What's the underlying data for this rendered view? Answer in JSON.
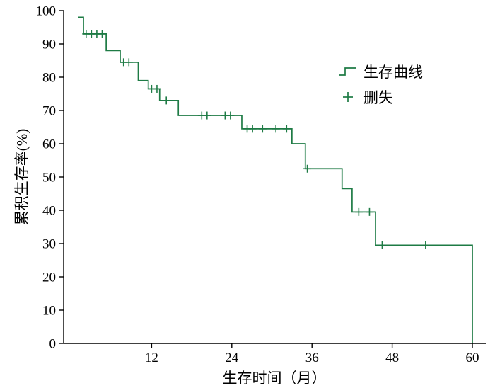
{
  "chart_data": {
    "type": "line",
    "subtype": "kaplan-meier-step-curve",
    "title": "",
    "xlabel": "生存时间（月）",
    "ylabel": "累积生存率(%)",
    "xlim": [
      0,
      62
    ],
    "ylim": [
      0,
      100
    ],
    "x_ticks": [
      12,
      24,
      36,
      48,
      60
    ],
    "y_ticks": [
      0,
      10,
      20,
      30,
      40,
      50,
      60,
      70,
      80,
      90,
      100
    ],
    "grid": false,
    "line_color": "#1e7b45",
    "axis_color": "#000000",
    "legend": {
      "position": "upper-right-inside",
      "items": [
        {
          "label": "生存曲线",
          "marker": "step-line"
        },
        {
          "label": "删失",
          "marker": "plus"
        }
      ]
    },
    "survival_steps": [
      [
        1,
        98
      ],
      [
        1.8,
        93
      ],
      [
        5.2,
        88
      ],
      [
        7.3,
        84.5
      ],
      [
        10,
        79
      ],
      [
        11.5,
        76.5
      ],
      [
        13.2,
        73
      ],
      [
        16,
        68.5
      ],
      [
        25.5,
        64.5
      ],
      [
        33,
        60
      ],
      [
        35,
        52.5
      ],
      [
        40.5,
        46.5
      ],
      [
        42,
        39.5
      ],
      [
        45.5,
        29.5
      ],
      [
        60,
        0
      ]
    ],
    "censor_marks": [
      [
        2.2,
        93
      ],
      [
        3.0,
        93
      ],
      [
        3.8,
        93
      ],
      [
        4.6,
        93
      ],
      [
        7.8,
        84.5
      ],
      [
        8.6,
        84.5
      ],
      [
        12.0,
        76.5
      ],
      [
        12.8,
        76.5
      ],
      [
        14.2,
        73
      ],
      [
        19.5,
        68.5
      ],
      [
        20.3,
        68.5
      ],
      [
        23.0,
        68.5
      ],
      [
        23.8,
        68.5
      ],
      [
        26.3,
        64.5
      ],
      [
        27.1,
        64.5
      ],
      [
        28.6,
        64.5
      ],
      [
        30.6,
        64.5
      ],
      [
        32.2,
        64.5
      ],
      [
        35.3,
        52.5
      ],
      [
        43.0,
        39.5
      ],
      [
        44.6,
        39.5
      ],
      [
        46.5,
        29.5
      ],
      [
        53.0,
        29.5
      ]
    ]
  }
}
